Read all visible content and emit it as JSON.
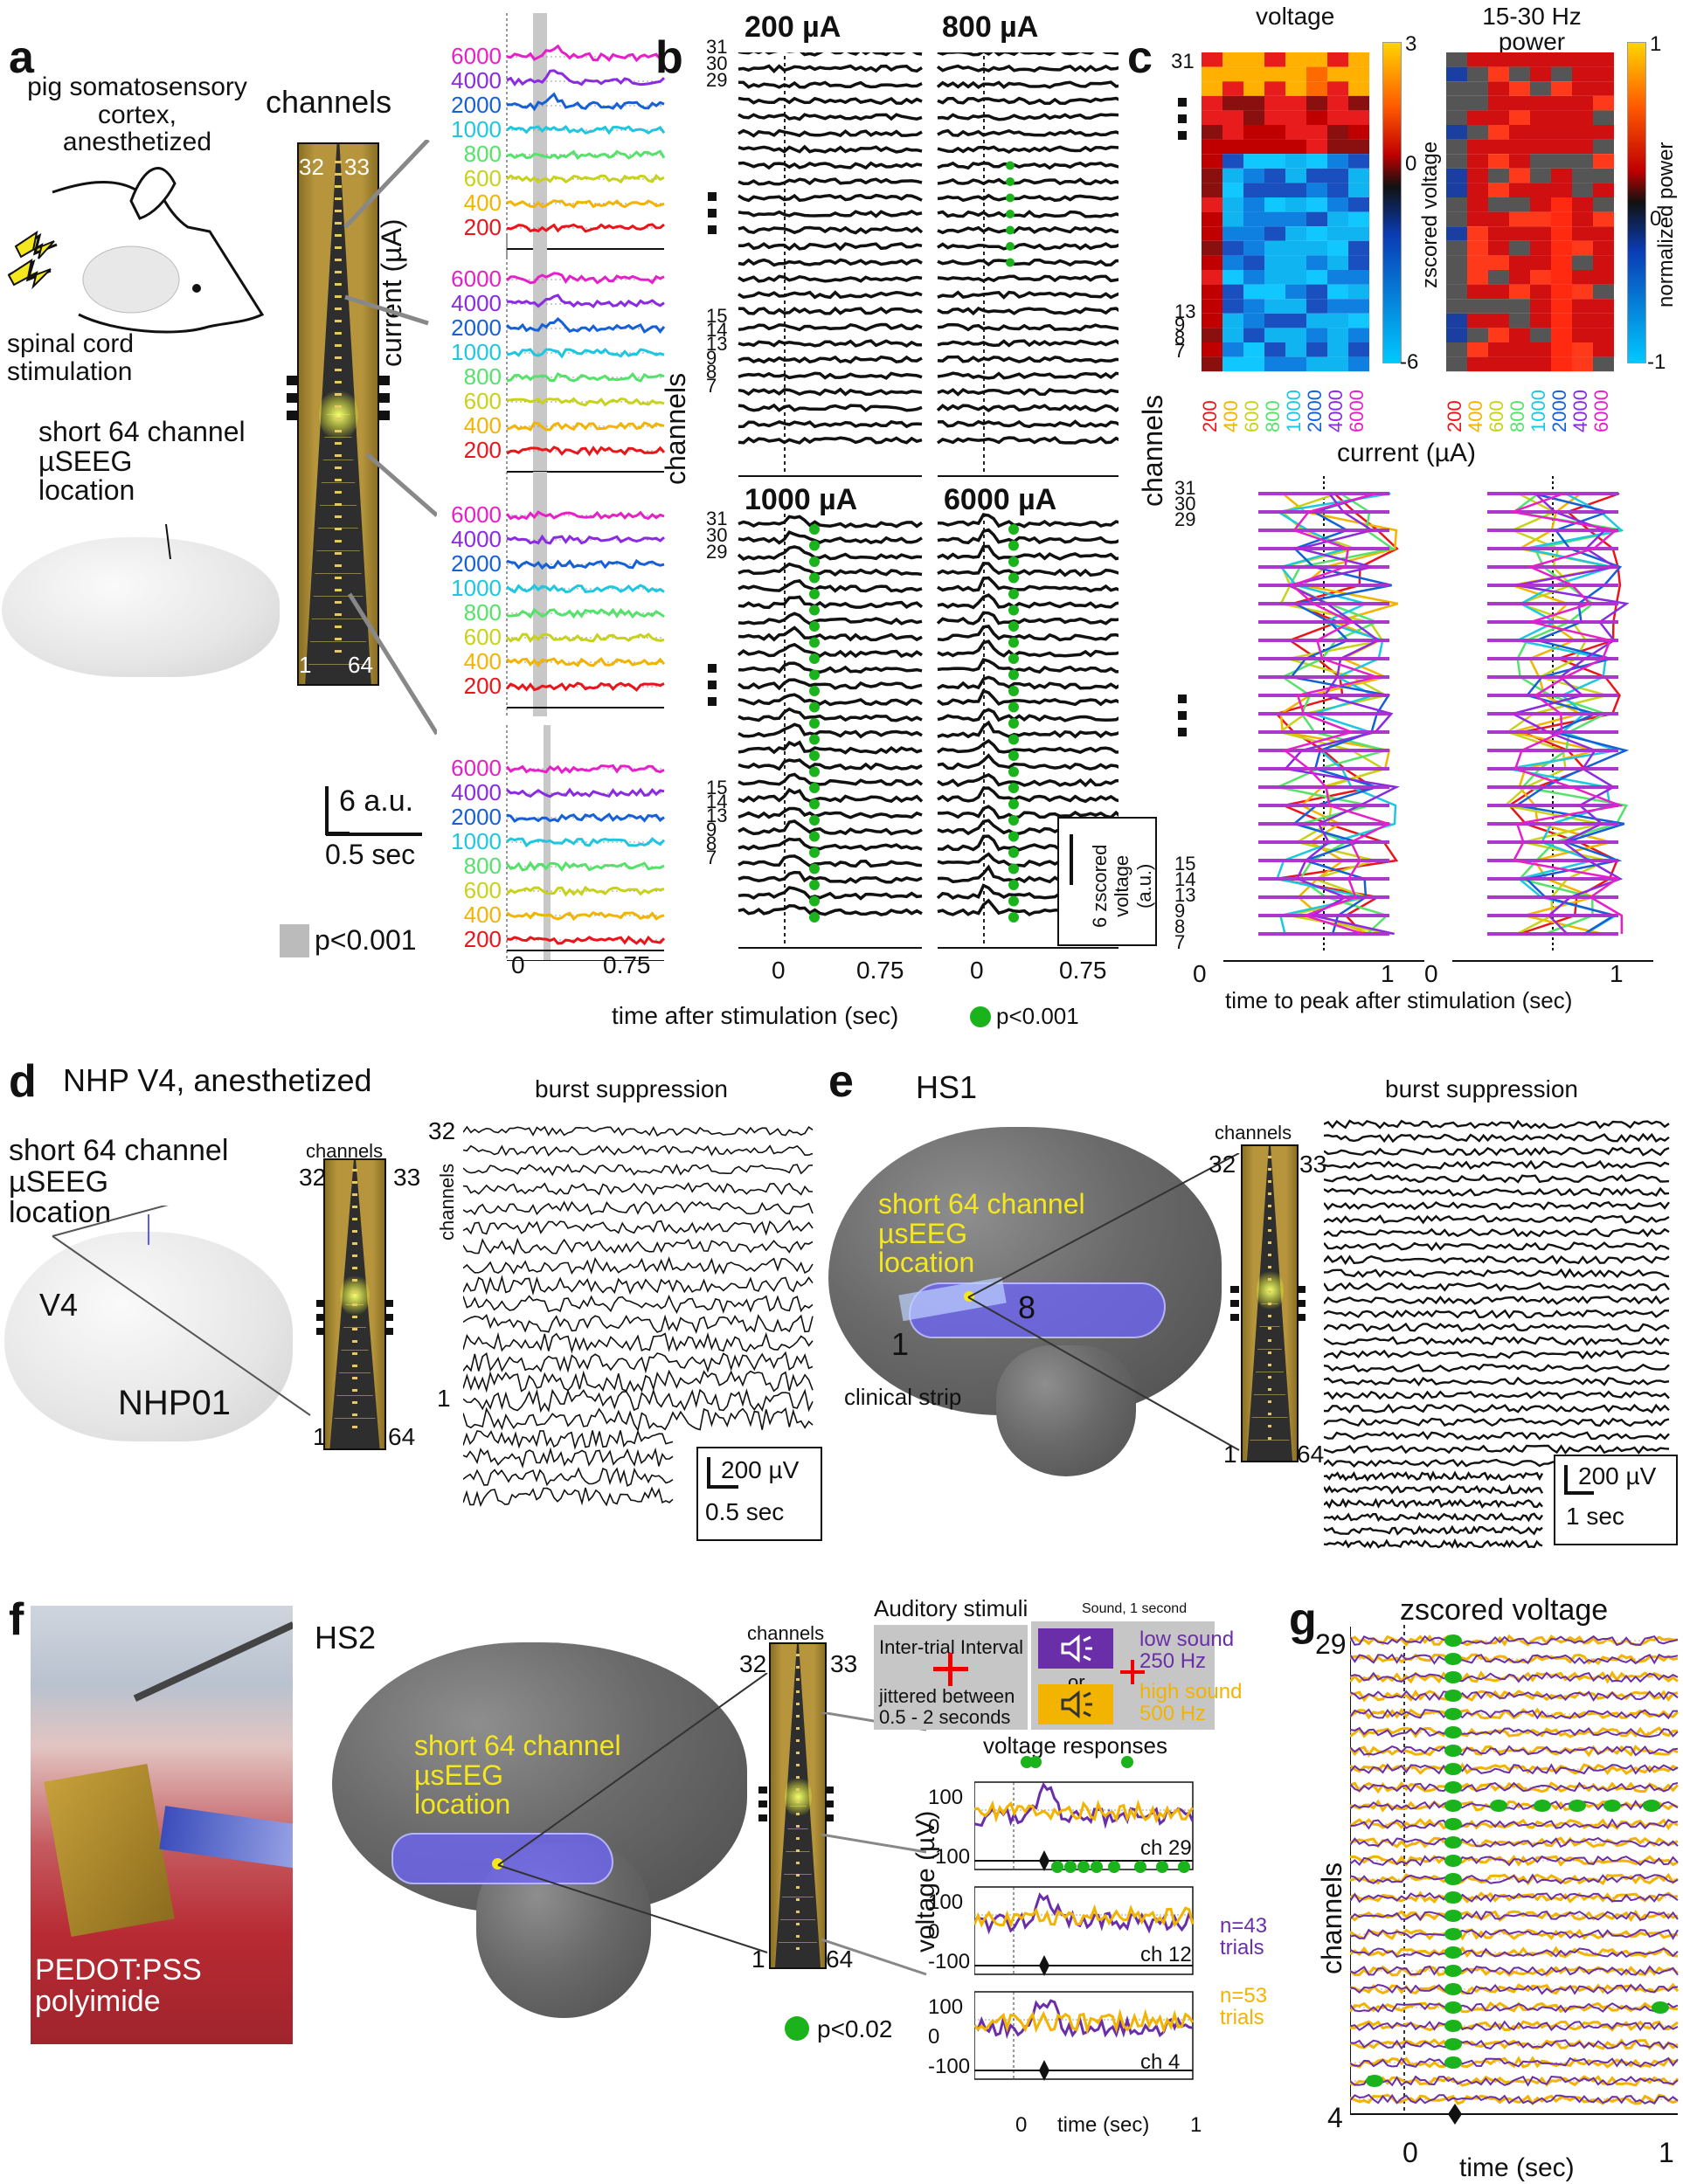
{
  "panels": {
    "a": "a",
    "b": "b",
    "c": "c",
    "d": "d",
    "e": "e",
    "f": "f",
    "g": "g"
  },
  "a": {
    "title_lines": [
      "pig somatosensory",
      "cortex,",
      "anesthetized"
    ],
    "stim_lines": [
      "spinal cord",
      "stimulation"
    ],
    "location_lines": [
      "short 64 channel",
      "µSEEG",
      "location"
    ],
    "channels": "channels",
    "probe_top_left": "32",
    "probe_top_right": "33",
    "probe_bot_left": "1",
    "probe_bot_right": "64",
    "ylabel": "current (µA)",
    "current_labels": [
      "6000",
      "4000",
      "2000",
      "1000",
      "800",
      "600",
      "400",
      "200"
    ],
    "scale_amp": "6 a.u.",
    "scale_time": "0.5 sec",
    "sig": "p<0.001",
    "xticks": [
      "0",
      "0.75"
    ]
  },
  "b": {
    "titles": [
      "200 µA",
      "800 µA",
      "1000 µA",
      "6000 µA"
    ],
    "title_colors": [
      "#e8161b",
      "#55e26b",
      "#1ec7e0",
      "#e620c8"
    ],
    "ylabel": "channels",
    "ch_labels_top": [
      "31",
      "30",
      "29"
    ],
    "ch_labels_bottom": [
      "15",
      "14",
      "13",
      "9",
      "8",
      "7"
    ],
    "xticks": [
      "0",
      "0.75"
    ],
    "xlabel": "time after stimulation (sec)",
    "sig": "p<0.001",
    "scale_line1": "6 zscored",
    "scale_line2": "voltage",
    "scale_line3": "(a.u.)"
  },
  "c": {
    "title_voltage": "voltage",
    "title_power_lines": [
      "15-30 Hz",
      "power"
    ],
    "cb1_ticks": [
      "3",
      "0",
      "-6"
    ],
    "cb1_label": "zscored voltage",
    "cb2_ticks": [
      "1",
      "0",
      "-1"
    ],
    "cb2_label": "normalized power",
    "rows_top": [
      "31"
    ],
    "rows_bottom": [
      "13",
      "9",
      "8",
      "7"
    ],
    "xcats": [
      "200",
      "400",
      "600",
      "800",
      "1000",
      "2000",
      "4000",
      "6000"
    ],
    "xcat_colors": [
      "#e8161b",
      "#f2b400",
      "#c8d21a",
      "#55e26b",
      "#1ec7e0",
      "#1560d6",
      "#8a2be2",
      "#e620c8"
    ],
    "xlabel": "current (µA)",
    "ylabel": "channels",
    "peak_rows_top": [
      "31",
      "30",
      "29"
    ],
    "peak_rows_bottom": [
      "15",
      "14",
      "13",
      "9",
      "8",
      "7"
    ],
    "peak_xticks": [
      "0",
      "1"
    ],
    "peak_xlabel": "time to peak after stimulation (sec)"
  },
  "d": {
    "title": "NHP V4, anesthetized",
    "location_lines": [
      "short 64 channel",
      "µSEEG",
      "location"
    ],
    "area": "V4",
    "subject": "NHP01",
    "channels": "channels",
    "probe_top_left": "32",
    "probe_top_right": "33",
    "probe_bot_left": "1",
    "probe_bot_right": "64",
    "trace_title": "burst suppression",
    "trace_top": "32",
    "trace_bottom": "1",
    "trace_ylabel": "channels",
    "scale_amp": "200 µV",
    "scale_time": "0.5 sec"
  },
  "e": {
    "title": "HS1",
    "location_lines": [
      "short 64 channel",
      "µsEEG",
      "location"
    ],
    "strip_left": "1",
    "strip_right": "8",
    "strip_label": "clinical strip",
    "channels": "channels",
    "probe_top_left": "32",
    "probe_top_right": "33",
    "probe_bot_left": "1",
    "probe_bot_right": "64",
    "trace_title": "burst suppression",
    "scale_amp": "200 µV",
    "scale_time": "1 sec"
  },
  "f": {
    "photo_lines": [
      "PEDOT:PSS",
      "polyimide"
    ],
    "title": "HS2",
    "location_lines": [
      "short 64 channel",
      "µsEEG",
      "location"
    ],
    "channels": "channels",
    "probe_top_left": "32",
    "probe_top_right": "33",
    "probe_bot_left": "1",
    "probe_bot_right": "64",
    "stim_title": "Auditory stimuli",
    "iti_lines": [
      "Inter-trial Interval",
      "jittered between",
      "0.5 - 2 seconds"
    ],
    "sound_title": "Sound, 1 second",
    "or": "or",
    "low_lines": [
      "low sound",
      "250 Hz"
    ],
    "high_lines": [
      "high sound",
      "500 Hz"
    ],
    "resp_title": "voltage responses",
    "ylabel": "voltage (µV)",
    "ch_labels": [
      "ch 29",
      "ch 12",
      "ch 4"
    ],
    "yticks": [
      "100",
      "0",
      "-100"
    ],
    "n_low_lines": [
      "n=43",
      "trials"
    ],
    "n_high_lines": [
      "n=53",
      "trials"
    ],
    "xticks": [
      "0",
      "1"
    ],
    "xlabel": "time (sec)",
    "sig": "p<0.02",
    "low_color": "#6a2fa8",
    "high_color": "#f2b400"
  },
  "g": {
    "title": "zscored voltage",
    "ylabel": "channels",
    "ch_top": "29",
    "ch_bottom": "4",
    "xticks": [
      "0",
      "1"
    ],
    "xlabel": "time (sec)"
  }
}
